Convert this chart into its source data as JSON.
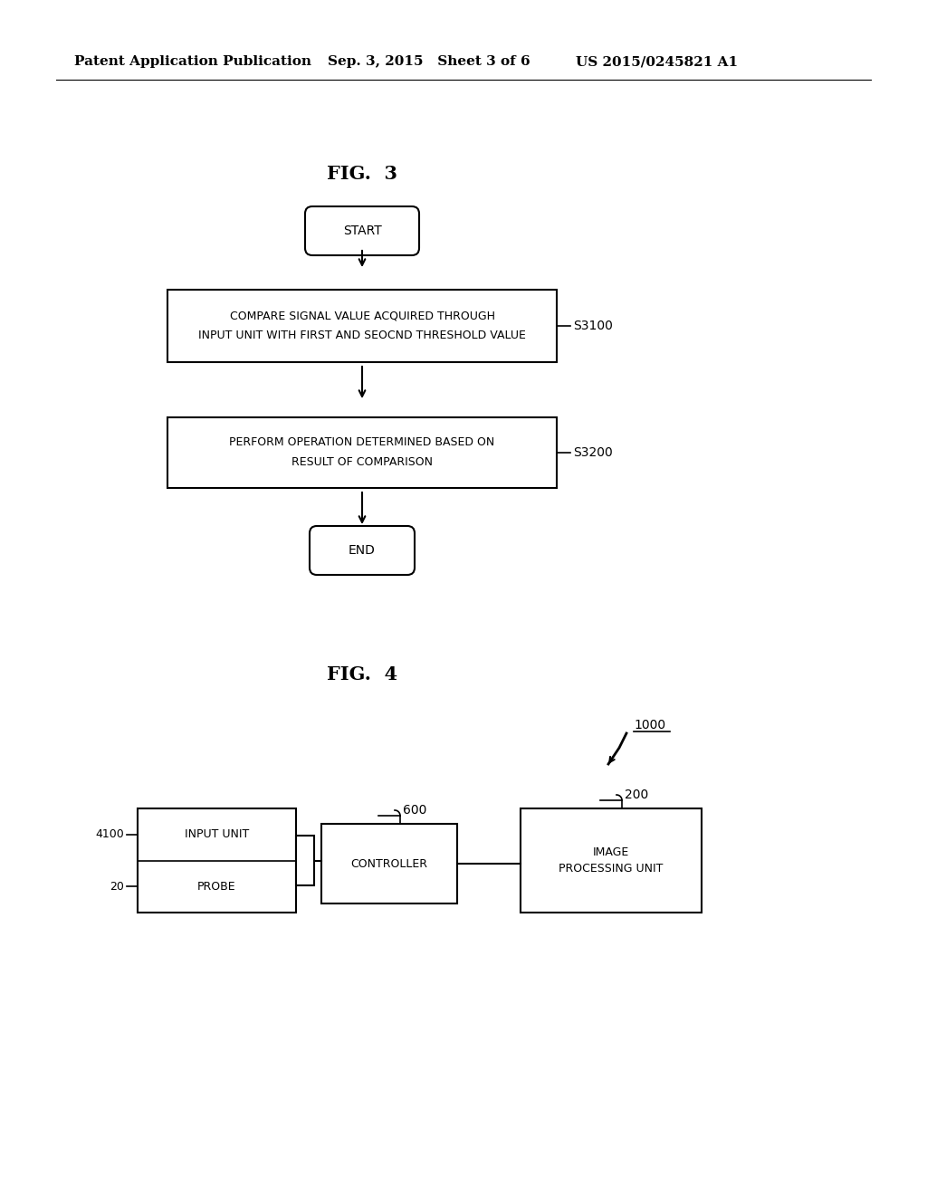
{
  "bg_color": "#ffffff",
  "header_text": "Patent Application Publication",
  "header_date": "Sep. 3, 2015   Sheet 3 of 6",
  "header_patent": "US 2015/0245821 A1",
  "fig3_title": "FIG.  3",
  "fig4_title": "FIG.  4",
  "fig3_start_label": "START",
  "fig3_box1_line1": "COMPARE SIGNAL VALUE ACQUIRED THROUGH",
  "fig3_box1_line2": "INPUT UNIT WITH FIRST AND SEOCND THRESHOLD VALUE",
  "fig3_box1_label": "S3100",
  "fig3_box2_line1": "PERFORM OPERATION DETERMINED BASED ON",
  "fig3_box2_line2": "RESULT OF COMPARISON",
  "fig3_box2_label": "S3200",
  "fig3_end_label": "END",
  "fig4_ref1000": "1000",
  "fig4_box_input_unit": "INPUT UNIT",
  "fig4_box_probe": "PROBE",
  "fig4_label_4100": "4100",
  "fig4_label_20": "20",
  "fig4_box_controller": "CONTROLLER",
  "fig4_label_600": "600",
  "fig4_box_image_line1": "IMAGE",
  "fig4_box_image_line2": "PROCESSING UNIT",
  "fig4_label_200": "200"
}
